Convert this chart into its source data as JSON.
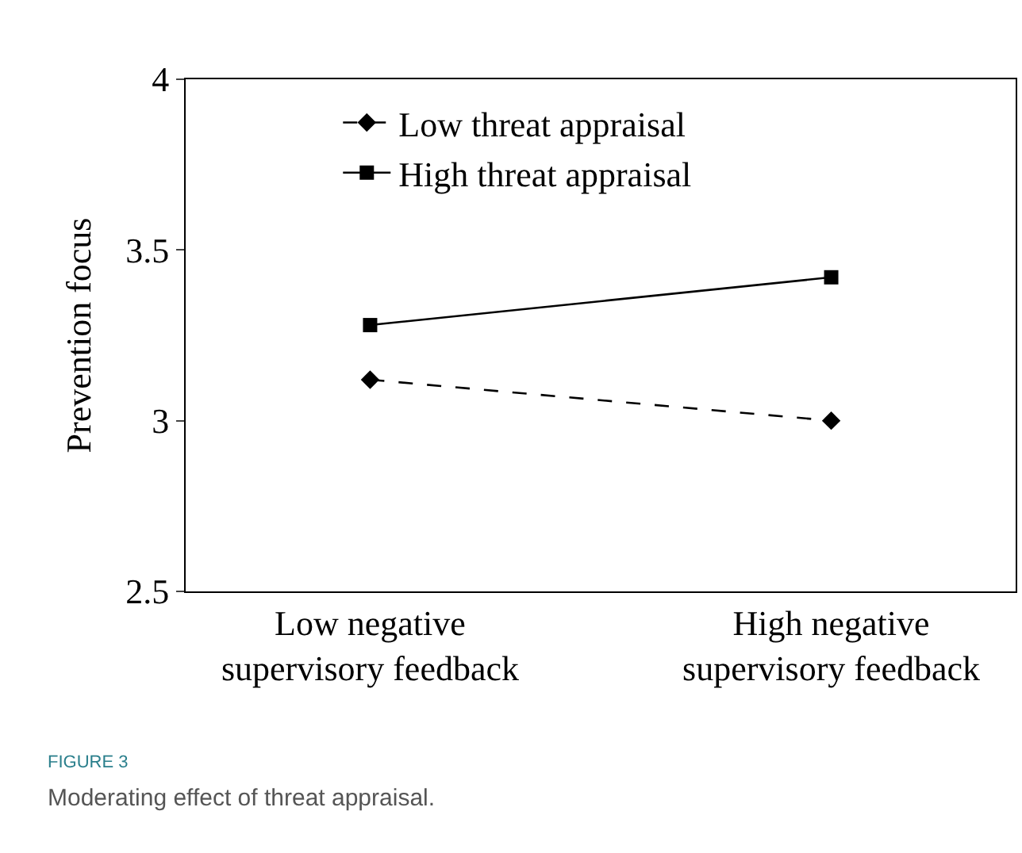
{
  "chart_data": {
    "type": "line",
    "ylabel": "Prevention focus",
    "categories": [
      "Low negative\nsupervisory feedback",
      "High negative\nsupervisory feedback"
    ],
    "series": [
      {
        "name": "Low threat appraisal",
        "color": "#000000",
        "values": [
          3.12,
          3.0
        ],
        "marker": "diamond",
        "line_style": "dashed"
      },
      {
        "name": "High threat appraisal",
        "color": "#000000",
        "values": [
          3.28,
          3.42
        ],
        "marker": "square",
        "line_style": "solid"
      }
    ],
    "ylim": [
      2.5,
      4
    ],
    "yticks": [
      2.5,
      3,
      3.5,
      4
    ],
    "legend": "top",
    "annotations": [
      "FIGURE 3",
      "Moderating effect of threat appraisal."
    ]
  }
}
